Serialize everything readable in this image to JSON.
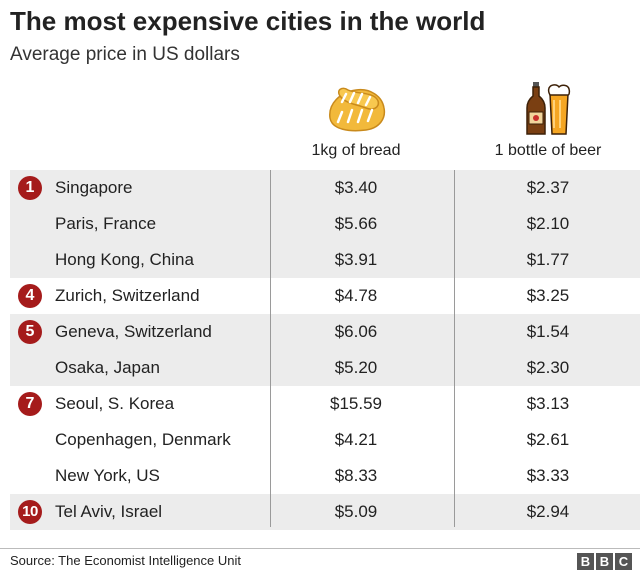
{
  "title": "The most expensive cities in the world",
  "subtitle": "Average price in US dollars",
  "chart_data": {
    "type": "table",
    "columns": [
      "1kg of bread",
      "1 bottle of beer"
    ],
    "icons": [
      "bread-icon",
      "beer-bottle-and-glass-icon"
    ],
    "groups": [
      {
        "rank": "1",
        "rows": [
          {
            "city": "Singapore",
            "bread": "$3.40",
            "beer": "$2.37"
          },
          {
            "city": "Paris, France",
            "bread": "$5.66",
            "beer": "$2.10"
          },
          {
            "city": "Hong Kong, China",
            "bread": "$3.91",
            "beer": "$1.77"
          }
        ]
      },
      {
        "rank": "4",
        "rows": [
          {
            "city": "Zurich, Switzerland",
            "bread": "$4.78",
            "beer": "$3.25"
          }
        ]
      },
      {
        "rank": "5",
        "rows": [
          {
            "city": "Geneva, Switzerland",
            "bread": "$6.06",
            "beer": "$1.54"
          },
          {
            "city": "Osaka, Japan",
            "bread": "$5.20",
            "beer": "$2.30"
          }
        ]
      },
      {
        "rank": "7",
        "rows": [
          {
            "city": "Seoul, S. Korea",
            "bread": "$15.59",
            "beer": "$3.13"
          },
          {
            "city": "Copenhagen, Denmark",
            "bread": "$4.21",
            "beer": "$2.61"
          },
          {
            "city": "New York, US",
            "bread": "$8.33",
            "beer": "$3.33"
          }
        ]
      },
      {
        "rank": "10",
        "rows": [
          {
            "city": "Tel Aviv, Israel",
            "bread": "$5.09",
            "beer": "$2.94"
          }
        ]
      }
    ],
    "colors": {
      "rank_badge": "#a51b1b",
      "row_shade": "#ececec",
      "bread": "#f2b93b",
      "beer": "#f5a623"
    }
  },
  "source": "Source: The Economist Intelligence Unit",
  "logo": [
    "B",
    "B",
    "C"
  ]
}
